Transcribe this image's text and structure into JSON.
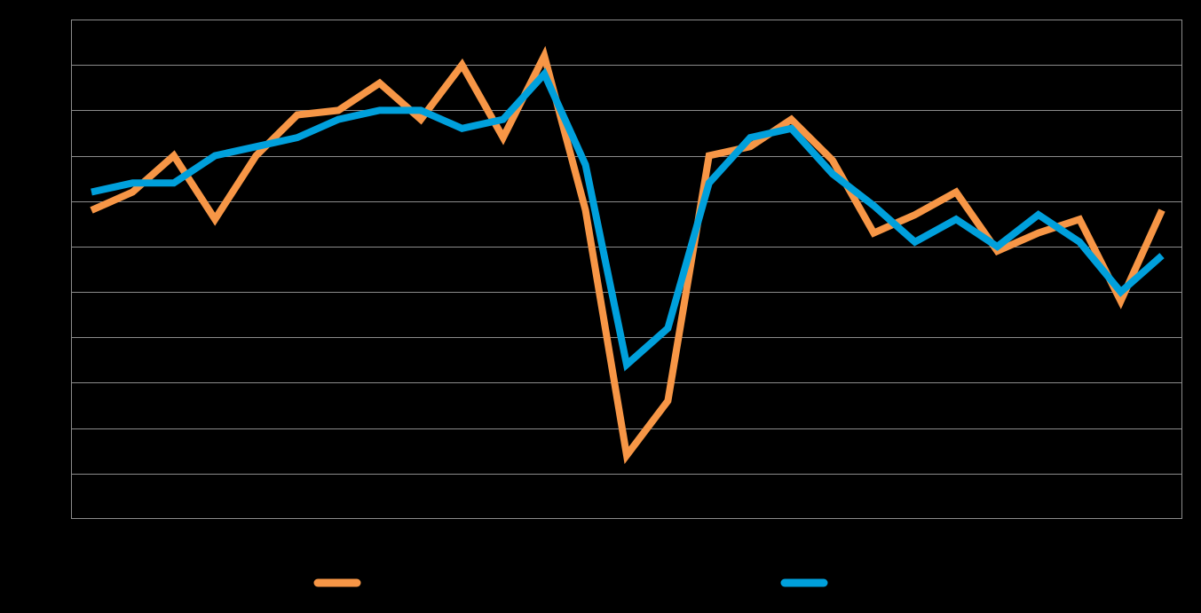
{
  "chart_data": {
    "type": "line",
    "title": "",
    "xlabel": "",
    "ylabel": "",
    "ylim": [
      0,
      11
    ],
    "grid": true,
    "legend_placement": "bottom",
    "x": [
      1,
      2,
      3,
      4,
      5,
      6,
      7,
      8,
      9,
      10,
      11,
      12,
      13,
      14,
      15,
      16,
      17,
      18,
      19,
      20,
      21,
      22,
      23,
      24,
      25,
      26,
      27
    ],
    "series": [
      {
        "color": "#F79646",
        "values": [
          6.8,
          7.2,
          8.0,
          6.6,
          8.0,
          8.9,
          9.0,
          9.6,
          8.8,
          10.0,
          8.4,
          10.2,
          6.8,
          1.4,
          2.6,
          8.0,
          8.2,
          8.8,
          7.9,
          6.3,
          6.7,
          7.2,
          5.9,
          6.3,
          6.6,
          4.8,
          6.8
        ]
      },
      {
        "color": "#00A0DC",
        "values": [
          7.2,
          7.4,
          7.4,
          8.0,
          8.2,
          8.4,
          8.8,
          9.0,
          9.0,
          8.6,
          8.8,
          9.8,
          7.8,
          3.4,
          4.2,
          7.4,
          8.4,
          8.6,
          7.6,
          6.9,
          6.1,
          6.6,
          6.0,
          6.7,
          6.1,
          5.0,
          5.8
        ]
      }
    ]
  },
  "colors": {
    "background": "#000000",
    "gridline": "#8c8c8c",
    "plot_border": "#8c8c8c"
  }
}
